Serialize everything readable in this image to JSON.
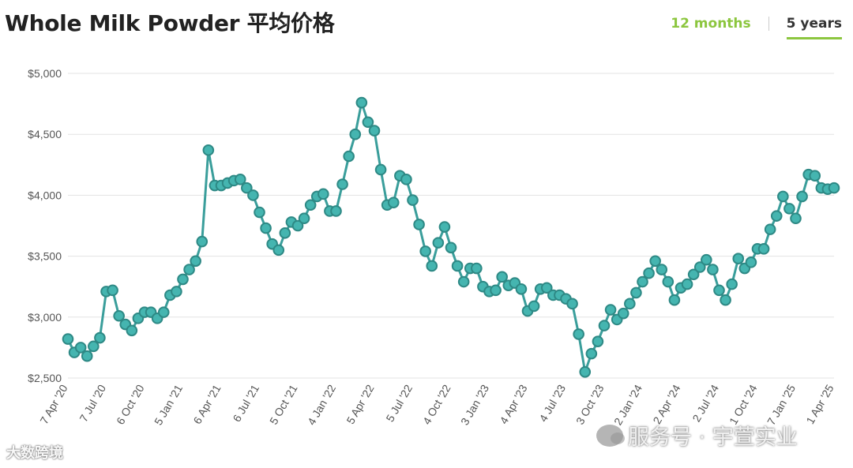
{
  "title": "Whole Milk Powder 平均价格",
  "tabs": [
    {
      "label": "12 months",
      "active": false
    },
    {
      "label": "5 years",
      "active": true
    }
  ],
  "watermarks": {
    "left": "大数跨境",
    "right": "服务号 · 宇萱实业"
  },
  "colors": {
    "line": "#3a9e9b",
    "marker_fill": "#45b5b0",
    "marker_stroke": "#2e8985",
    "grid": "#e3e3e3",
    "axis_text": "#555555",
    "accent": "#8cc63f"
  },
  "chart_data": {
    "type": "line",
    "title": "Whole Milk Powder 平均价格",
    "xlabel": "",
    "ylabel": "",
    "ylim": [
      2500,
      5000
    ],
    "yticks": [
      2500,
      3000,
      3500,
      4000,
      4500,
      5000
    ],
    "ytick_labels": [
      "$2,500",
      "$3,000",
      "$3,500",
      "$4,000",
      "$4,500",
      "$5,000"
    ],
    "xticks": [
      {
        "label": "7 Apr '20",
        "index": 0
      },
      {
        "label": "7 Jul '20",
        "index": 6
      },
      {
        "label": "6 Oct '20",
        "index": 12
      },
      {
        "label": "5 Jan '21",
        "index": 18
      },
      {
        "label": "6 Apr '21",
        "index": 24
      },
      {
        "label": "6 Jul '21",
        "index": 30
      },
      {
        "label": "5 Oct '21",
        "index": 36
      },
      {
        "label": "4 Jan '22",
        "index": 42
      },
      {
        "label": "5 Apr '22",
        "index": 48
      },
      {
        "label": "5 Jul '22",
        "index": 54
      },
      {
        "label": "4 Oct '22",
        "index": 60
      },
      {
        "label": "3 Jan '23",
        "index": 66
      },
      {
        "label": "4 Apr '23",
        "index": 72
      },
      {
        "label": "4 Jul '23",
        "index": 78
      },
      {
        "label": "3 Oct '23",
        "index": 84
      },
      {
        "label": "2 Jan '24",
        "index": 90
      },
      {
        "label": "2 Apr '24",
        "index": 96
      },
      {
        "label": "2 Jul '24",
        "index": 102
      },
      {
        "label": "1 Oct '24",
        "index": 108
      },
      {
        "label": "7 Jan '25",
        "index": 114
      },
      {
        "label": "1 Apr '25",
        "index": 120
      }
    ],
    "grid": true,
    "legend": "none",
    "series": [
      {
        "values": [
          2820,
          2710,
          2750,
          2680,
          2760,
          2830,
          3210,
          3220,
          3010,
          2940,
          2890,
          2990,
          3040,
          3040,
          2990,
          3040,
          3180,
          3210,
          3310,
          3390,
          3460,
          3620,
          4370,
          4080,
          4080,
          4100,
          4120,
          4130,
          4060,
          4000,
          3860,
          3730,
          3600,
          3550,
          3690,
          3780,
          3750,
          3810,
          3920,
          3990,
          4010,
          3870,
          3870,
          4090,
          4320,
          4500,
          4760,
          4600,
          4530,
          4210,
          3920,
          3940,
          4160,
          4130,
          3960,
          3760,
          3540,
          3420,
          3610,
          3740,
          3570,
          3420,
          3290,
          3400,
          3400,
          3250,
          3210,
          3220,
          3330,
          3260,
          3280,
          3230,
          3050,
          3090,
          3230,
          3240,
          3180,
          3180,
          3150,
          3110,
          2860,
          2550,
          2700,
          2800,
          2930,
          3060,
          2980,
          3030,
          3110,
          3200,
          3290,
          3360,
          3460,
          3390,
          3290,
          3140,
          3240,
          3270,
          3350,
          3410,
          3470,
          3390,
          3220,
          3140,
          3270,
          3480,
          3400,
          3450,
          3560,
          3560,
          3720,
          3830,
          3990,
          3890,
          3810,
          3990,
          4170,
          4160,
          4060,
          4050,
          4060
        ]
      }
    ]
  }
}
